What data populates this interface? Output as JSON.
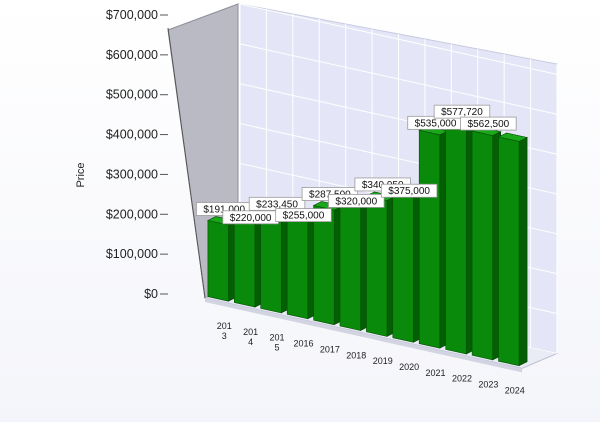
{
  "chart_data": {
    "type": "bar",
    "title": "",
    "xlabel": "",
    "ylabel": "Price",
    "ylim": [
      0,
      700000
    ],
    "grid": true,
    "style": "3d",
    "colors": {
      "bar": "#0a8a0a",
      "bar_side": "#045f04",
      "bar_top": "#19a819",
      "back_wall": "#e4e6f7",
      "floor": "#e9ebf5"
    },
    "yticks": [
      "$0",
      "$100,000",
      "$200,000",
      "$300,000",
      "$400,000",
      "$500,000",
      "$600,000",
      "$700,000"
    ],
    "categories": [
      "201\n3",
      "201\n4",
      "201\n5",
      "2016",
      "2017",
      "2018",
      "2019",
      "2020",
      "2021",
      "2022",
      "2023",
      "2024"
    ],
    "values": [
      191000,
      220000,
      233450,
      255000,
      287500,
      320000,
      340950,
      375000,
      535000,
      577720,
      562500,
      562500
    ],
    "data_labels": [
      "$191,000",
      "$220,000",
      "$233,450",
      "$255,000",
      "$287,500",
      "$320,000",
      "$340,950",
      "$375,000",
      "$535,000",
      "$577,720",
      "$562,500",
      ""
    ]
  }
}
